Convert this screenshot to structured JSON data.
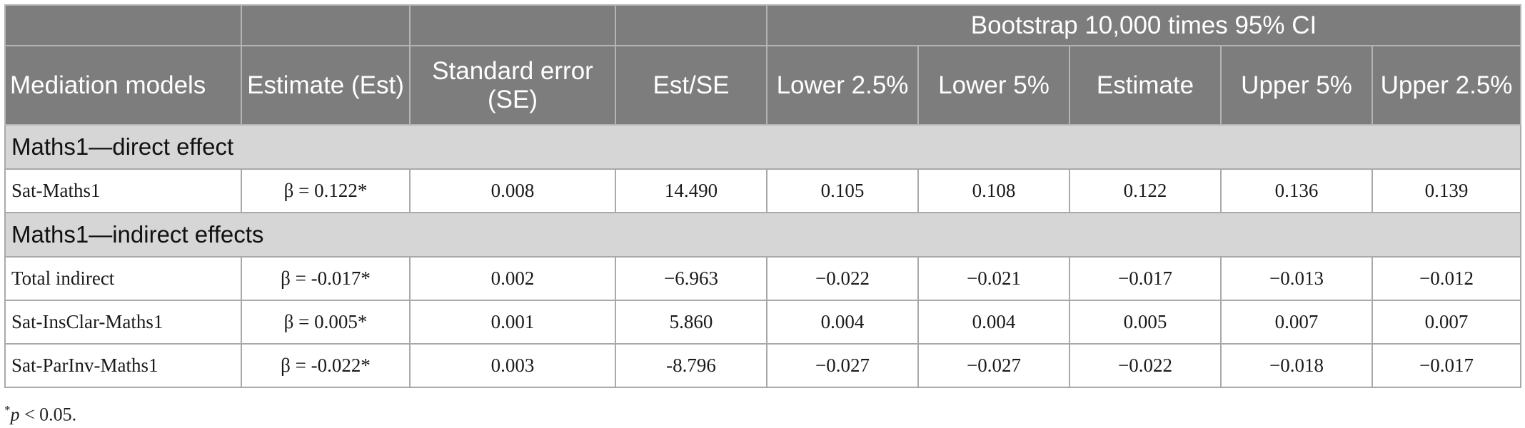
{
  "table": {
    "group_header": "Bootstrap 10,000 times 95% CI",
    "columns": {
      "c0": "Mediation models",
      "c1": "Estimate (Est)",
      "c2": "Standard error (SE)",
      "c3": "Est/SE",
      "c4": "Lower 2.5%",
      "c5": "Lower 5%",
      "c6": "Estimate",
      "c7": "Upper 5%",
      "c8": "Upper 2.5%"
    },
    "sections": [
      {
        "title": "Maths1—direct effect",
        "rows": [
          {
            "cells": [
              "Sat-Maths1",
              "β = 0.122*",
              "0.008",
              "14.490",
              "0.105",
              "0.108",
              "0.122",
              "0.136",
              "0.139"
            ]
          }
        ]
      },
      {
        "title": "Maths1—indirect effects",
        "rows": [
          {
            "cells": [
              "Total indirect",
              "β = -0.017*",
              "0.002",
              "−6.963",
              "−0.022",
              "−0.021",
              "−0.017",
              "−0.013",
              "−0.012"
            ]
          },
          {
            "cells": [
              "Sat-InsClar-Maths1",
              "β = 0.005*",
              "0.001",
              "5.860",
              "0.004",
              "0.004",
              "0.005",
              "0.007",
              "0.007"
            ]
          },
          {
            "cells": [
              "Sat-ParInv-Maths1",
              "β = -0.022*",
              "0.003",
              "-8.796",
              "−0.027",
              "−0.027",
              "−0.022",
              "−0.018",
              "−0.017"
            ]
          }
        ]
      }
    ]
  },
  "footnote": {
    "marker": "*",
    "var": "p",
    "text": " < 0.05."
  }
}
